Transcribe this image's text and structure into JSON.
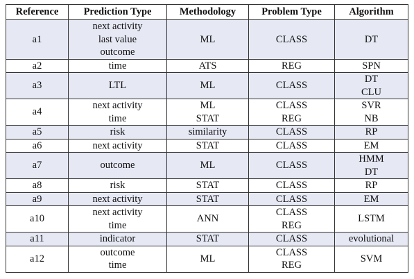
{
  "table": {
    "headers": [
      "Reference",
      "Prediction Type",
      "Methodology",
      "Problem Type",
      "Algorithm"
    ],
    "rows": [
      {
        "ref": "a1",
        "pred": [
          "next activity",
          "last value",
          "outcome"
        ],
        "method": [
          "ML"
        ],
        "problem": [
          "CLASS"
        ],
        "algo": [
          "DT"
        ]
      },
      {
        "ref": "a2",
        "pred": [
          "time"
        ],
        "method": [
          "ATS"
        ],
        "problem": [
          "REG"
        ],
        "algo": [
          "SPN"
        ]
      },
      {
        "ref": "a3",
        "pred": [
          "LTL"
        ],
        "method": [
          "ML"
        ],
        "problem": [
          "CLASS"
        ],
        "algo": [
          "DT",
          "CLU"
        ]
      },
      {
        "ref": "a4",
        "pred": [
          "next activity",
          "time"
        ],
        "method": [
          "ML",
          "STAT"
        ],
        "problem": [
          "CLASS",
          "REG"
        ],
        "algo": [
          "SVR",
          "NB"
        ]
      },
      {
        "ref": "a5",
        "pred": [
          "risk"
        ],
        "method": [
          "similarity"
        ],
        "problem": [
          "CLASS"
        ],
        "algo": [
          "RP"
        ]
      },
      {
        "ref": "a6",
        "pred": [
          "next activity"
        ],
        "method": [
          "STAT"
        ],
        "problem": [
          "CLASS"
        ],
        "algo": [
          "EM"
        ]
      },
      {
        "ref": "a7",
        "pred": [
          "outcome"
        ],
        "method": [
          "ML"
        ],
        "problem": [
          "CLASS"
        ],
        "algo": [
          "HMM",
          "DT"
        ]
      },
      {
        "ref": "a8",
        "pred": [
          "risk"
        ],
        "method": [
          "STAT"
        ],
        "problem": [
          "CLASS"
        ],
        "algo": [
          "RP"
        ]
      },
      {
        "ref": "a9",
        "pred": [
          "next activity"
        ],
        "method": [
          "STAT"
        ],
        "problem": [
          "CLASS"
        ],
        "algo": [
          "EM"
        ]
      },
      {
        "ref": "a10",
        "pred": [
          "next activity",
          "time"
        ],
        "method": [
          "ANN"
        ],
        "problem": [
          "CLASS",
          "REG"
        ],
        "algo": [
          "LSTM"
        ]
      },
      {
        "ref": "a11",
        "pred": [
          "indicator"
        ],
        "method": [
          "STAT"
        ],
        "problem": [
          "CLASS"
        ],
        "algo": [
          "evolutional"
        ]
      },
      {
        "ref": "a12",
        "pred": [
          "outcome",
          "time"
        ],
        "method": [
          "ML"
        ],
        "problem": [
          "CLASS",
          "REG"
        ],
        "algo": [
          "SVM"
        ]
      }
    ]
  }
}
